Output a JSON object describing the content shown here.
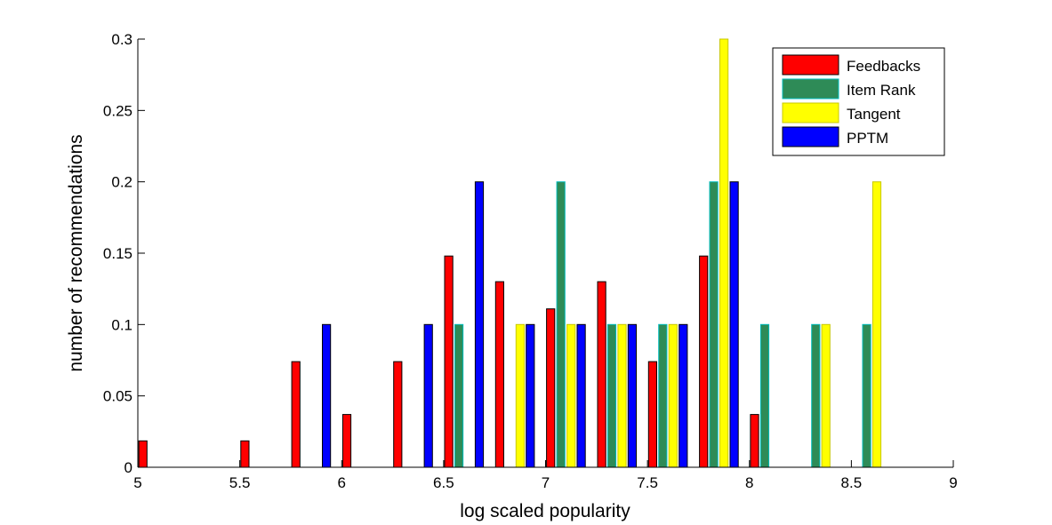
{
  "chart_data": {
    "type": "bar",
    "xlabel": "log scaled popularity",
    "ylabel": "number of recommendations",
    "xlim": [
      5,
      9
    ],
    "ylim": [
      0,
      0.3
    ],
    "xticks": [
      "5",
      "5.5",
      "6",
      "6.5",
      "7",
      "7.5",
      "8",
      "8.5",
      "9"
    ],
    "yticks": [
      "0",
      "0.05",
      "0.1",
      "0.15",
      "0.2",
      "0.25",
      "0.3"
    ],
    "bin_centers": [
      5.1,
      5.35,
      5.6,
      5.85,
      6.1,
      6.35,
      6.6,
      6.85,
      7.1,
      7.35,
      7.6,
      7.85,
      8.1,
      8.35,
      8.6,
      8.85
    ],
    "legend_position": "top-right",
    "grid": false,
    "series": [
      {
        "name": "Feedbacks",
        "color": "#ff0000",
        "edge": "#000000",
        "values": [
          0.0185,
          0,
          0.0185,
          0.074,
          0.037,
          0.074,
          0.148,
          0.13,
          0.111,
          0.13,
          0.074,
          0.148,
          0.037,
          0,
          0,
          0
        ]
      },
      {
        "name": "Item Rank",
        "color": "#2e8b57",
        "edge": "#00bcbc",
        "values": [
          0,
          0,
          0,
          0,
          0,
          0,
          0.1,
          0,
          0.2,
          0.1,
          0.1,
          0.2,
          0.1,
          0.1,
          0.1,
          0
        ]
      },
      {
        "name": "Tangent",
        "color": "#ffff00",
        "edge": "#c8c800",
        "values": [
          0,
          0,
          0,
          0,
          0,
          0,
          0,
          0.1,
          0.1,
          0.1,
          0.1,
          0.3,
          0,
          0.1,
          0.2,
          0
        ]
      },
      {
        "name": "PPTM",
        "color": "#0000ff",
        "edge": "#000000",
        "values": [
          0,
          0,
          0,
          0.1,
          0,
          0.1,
          0.2,
          0.1,
          0.1,
          0.1,
          0.1,
          0.2,
          0,
          0,
          0,
          0
        ]
      }
    ]
  }
}
